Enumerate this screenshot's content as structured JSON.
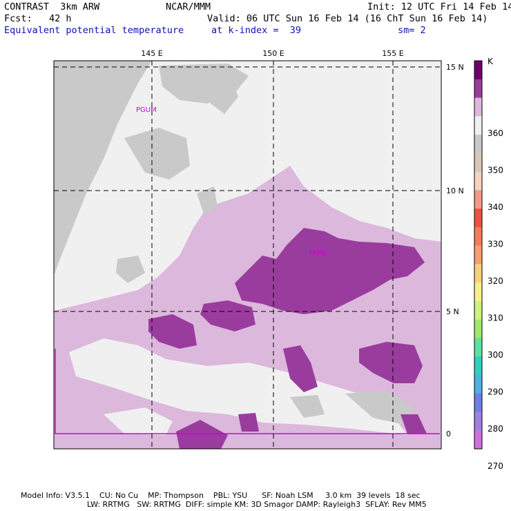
{
  "header": {
    "title": "CONTRAST  3km ARW",
    "center": "NCAR/MMM",
    "init": "Init: 12 UTC Fri 14 Feb 14",
    "fcst": "Fcst:   42 h",
    "valid": "Valid: 06 UTC Sun 16 Feb 14 (16 ChT Sun 16 Feb 14)",
    "field": "Equivalent potential temperature",
    "level": "at k-index =  39",
    "smooth": "sm= 2"
  },
  "map": {
    "lon_labels": [
      "145 E",
      "150 E",
      "155 E"
    ],
    "lat_labels": [
      "15 N",
      "10 N",
      "5 N",
      "0"
    ],
    "station_labels": [
      "PGUM",
      "PKMJ"
    ],
    "colors": {
      "dark_purple": "#9a3c9e",
      "light_purple": "#dcb8dc",
      "white": "#f0f0f0",
      "gray": "#c9c9c9",
      "frame": "#d000d0"
    }
  },
  "colorbar": {
    "unit": "K",
    "labels": [
      "360",
      "350",
      "340",
      "330",
      "320",
      "310",
      "300",
      "290",
      "280",
      "270"
    ],
    "colors": [
      "#6e006e",
      "#9a3c9e",
      "#dcb8dc",
      "#f0f0f0",
      "#c9c9c9",
      "#d9c8b8",
      "#f5d5c0",
      "#f29a8a",
      "#f05040",
      "#f07e5a",
      "#f5a070",
      "#f8d080",
      "#f8f090",
      "#d0f080",
      "#a0e870",
      "#60e0a0",
      "#30d0c0",
      "#50b0e0",
      "#7080e0",
      "#a080e0",
      "#d070e0"
    ]
  },
  "footer": {
    "line1": "Model Info: V3.5.1    CU: No Cu    MP: Thompson    PBL: YSU      SF: Noah LSM     3.0 km  39 levels  18 sec",
    "line2": "LW: RRTMG   SW: RRTMG  DIFF: simple KM: 3D Smagor DAMP: Rayleigh3  SFLAY: Rev MM5"
  }
}
